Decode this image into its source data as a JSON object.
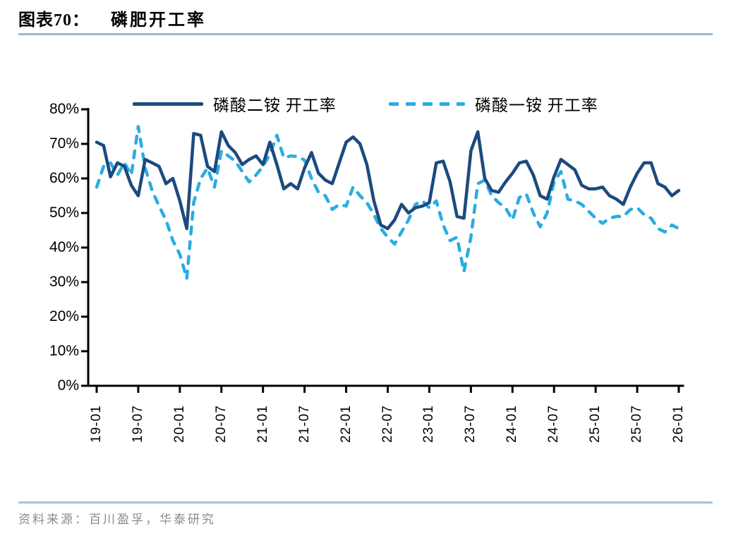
{
  "header": {
    "label": "图表70：",
    "title": "磷肥开工率"
  },
  "legend": {
    "items": [
      {
        "label": "磷酸二铵 开工率",
        "color": "#1B4A7F",
        "line_style": "solid"
      },
      {
        "label": "磷酸一铵 开工率",
        "color": "#29ACE3",
        "line_style": "dashed"
      }
    ]
  },
  "chart_data": {
    "type": "line",
    "title": "磷肥开工率",
    "xlabel": "",
    "ylabel": "",
    "ylim": [
      0,
      80
    ],
    "grid": false,
    "legend_position": "top",
    "x_unit": "monthly, 2019-01 to 2026-01 (YY-MM)",
    "n_points": 85,
    "y_ticks": [
      {
        "value": 80,
        "label": "80%"
      },
      {
        "value": 70,
        "label": "70%"
      },
      {
        "value": 60,
        "label": "60%"
      },
      {
        "value": 50,
        "label": "50%"
      },
      {
        "value": 40,
        "label": "40%"
      },
      {
        "value": 30,
        "label": "30%"
      },
      {
        "value": 20,
        "label": "20%"
      },
      {
        "value": 10,
        "label": "10%"
      },
      {
        "value": 0,
        "label": "0%"
      }
    ],
    "x_ticks": [
      {
        "index": 0,
        "label": "19-01"
      },
      {
        "index": 6,
        "label": "19-07"
      },
      {
        "index": 12,
        "label": "20-01"
      },
      {
        "index": 18,
        "label": "20-07"
      },
      {
        "index": 24,
        "label": "21-01"
      },
      {
        "index": 30,
        "label": "21-07"
      },
      {
        "index": 36,
        "label": "22-01"
      },
      {
        "index": 42,
        "label": "22-07"
      },
      {
        "index": 48,
        "label": "23-01"
      },
      {
        "index": 54,
        "label": "23-07"
      },
      {
        "index": 60,
        "label": "24-01"
      },
      {
        "index": 66,
        "label": "24-07"
      },
      {
        "index": 72,
        "label": "25-01"
      },
      {
        "index": 78,
        "label": "25-07"
      },
      {
        "index": 84,
        "label": "26-01"
      }
    ],
    "series": [
      {
        "name": "磷酸二铵 开工率",
        "color": "#1B4A7F",
        "dash": "solid",
        "values": [
          70.5,
          69.5,
          60.5,
          64.5,
          63.5,
          58,
          55,
          65.5,
          64.5,
          63.5,
          58.5,
          60,
          53.5,
          45.5,
          73,
          72.5,
          63.5,
          62,
          73.5,
          69.5,
          67.5,
          64,
          65.5,
          66.5,
          64,
          70.5,
          64,
          57,
          58.5,
          57,
          63,
          67.5,
          61.5,
          59.5,
          58.5,
          64.5,
          70.5,
          72,
          70,
          64,
          53.5,
          46.5,
          45.5,
          48,
          52.5,
          50,
          51.5,
          52,
          53,
          64.5,
          65,
          59,
          49,
          48.5,
          68,
          73.5,
          60,
          56.5,
          56,
          59,
          61.5,
          64.5,
          65,
          61,
          55,
          54,
          60.5,
          65.5,
          64,
          62.5,
          58,
          57,
          57,
          57.5,
          55,
          54,
          52.5,
          57.5,
          61.5,
          64.5,
          64.5,
          58.5,
          57.5,
          55,
          56.5
        ]
      },
      {
        "name": "磷酸一铵 开工率",
        "color": "#29ACE3",
        "dash": "dashed",
        "values": [
          57.5,
          63.5,
          64.5,
          61,
          64.5,
          61,
          75,
          63,
          56.5,
          52,
          48,
          42,
          38,
          31,
          53,
          60,
          63,
          57.5,
          68,
          66.5,
          65,
          62,
          59,
          61,
          63.5,
          67,
          72.5,
          66,
          66.5,
          66.3,
          65.3,
          60,
          56,
          55,
          51,
          52.5,
          52,
          57.5,
          55,
          53,
          49.5,
          45.5,
          43,
          41,
          44.5,
          48,
          52.5,
          53.5,
          51.5,
          53.5,
          46.5,
          42,
          43,
          33,
          43,
          58.5,
          59.5,
          55,
          53,
          51.5,
          48,
          54.5,
          55.5,
          50,
          46,
          50,
          59,
          62,
          54,
          53.5,
          52.5,
          50.5,
          48.5,
          47,
          48.5,
          49,
          49,
          51,
          51.5,
          49.5,
          48.5,
          45.5,
          44.5,
          46.5,
          45.5
        ]
      }
    ]
  },
  "footer": {
    "source": "资料来源：百川盈孚，华泰研究"
  },
  "colors": {
    "axis": "#000000",
    "header_rule": "#9FB9D0",
    "footer_rule": "#A9C3DC",
    "source_text": "#8A8A8A"
  }
}
